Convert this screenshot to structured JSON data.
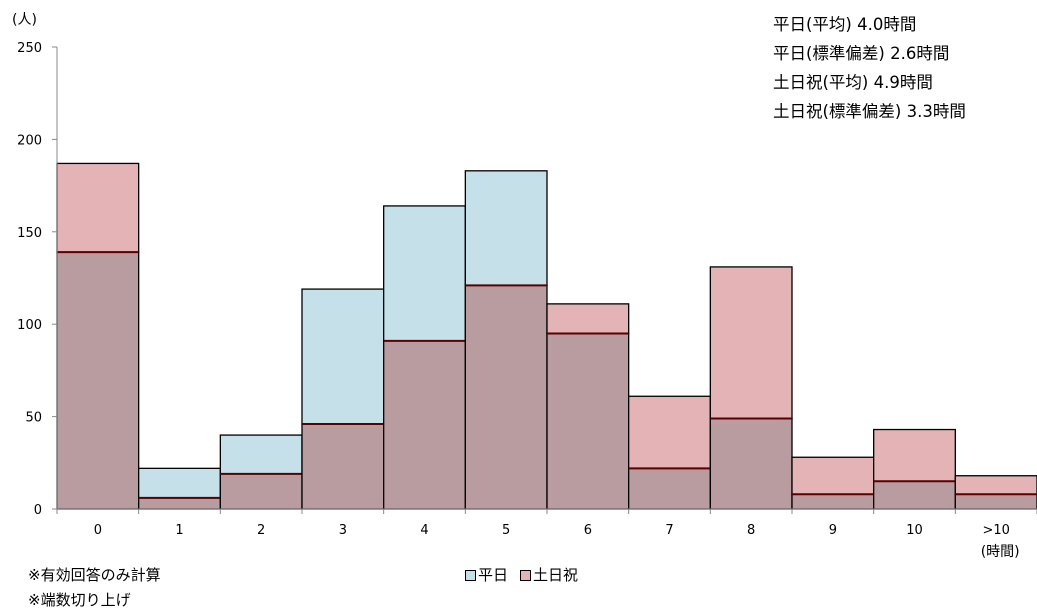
{
  "chart_data": {
    "type": "bar",
    "y_unit": "(人)",
    "x_unit": "(時間)",
    "categories": [
      "0",
      "1",
      "2",
      "3",
      "4",
      "5",
      "6",
      "7",
      "8",
      "9",
      "10",
      ">10"
    ],
    "series": [
      {
        "name": "平日",
        "values": [
          139,
          22,
          40,
          119,
          164,
          183,
          95,
          22,
          49,
          8,
          15,
          8
        ],
        "color": "#c6e0ea"
      },
      {
        "name": "土日祝",
        "values": [
          187,
          6,
          19,
          46,
          91,
          121,
          111,
          61,
          131,
          28,
          43,
          18
        ],
        "color": "#e3b3b6"
      }
    ],
    "overlap_color": "#b89ca0",
    "ylim": [
      0,
      250
    ],
    "yticks": [
      0,
      50,
      100,
      150,
      200,
      250
    ],
    "grid": false
  },
  "stats": [
    "平日(平均) 4.0時間",
    "平日(標準偏差) 2.6時間",
    "土日祝(平均) 4.9時間",
    "土日祝(標準偏差) 3.3時間"
  ],
  "notes": [
    "※有効回答のみ計算",
    "※端数切り上げ"
  ]
}
